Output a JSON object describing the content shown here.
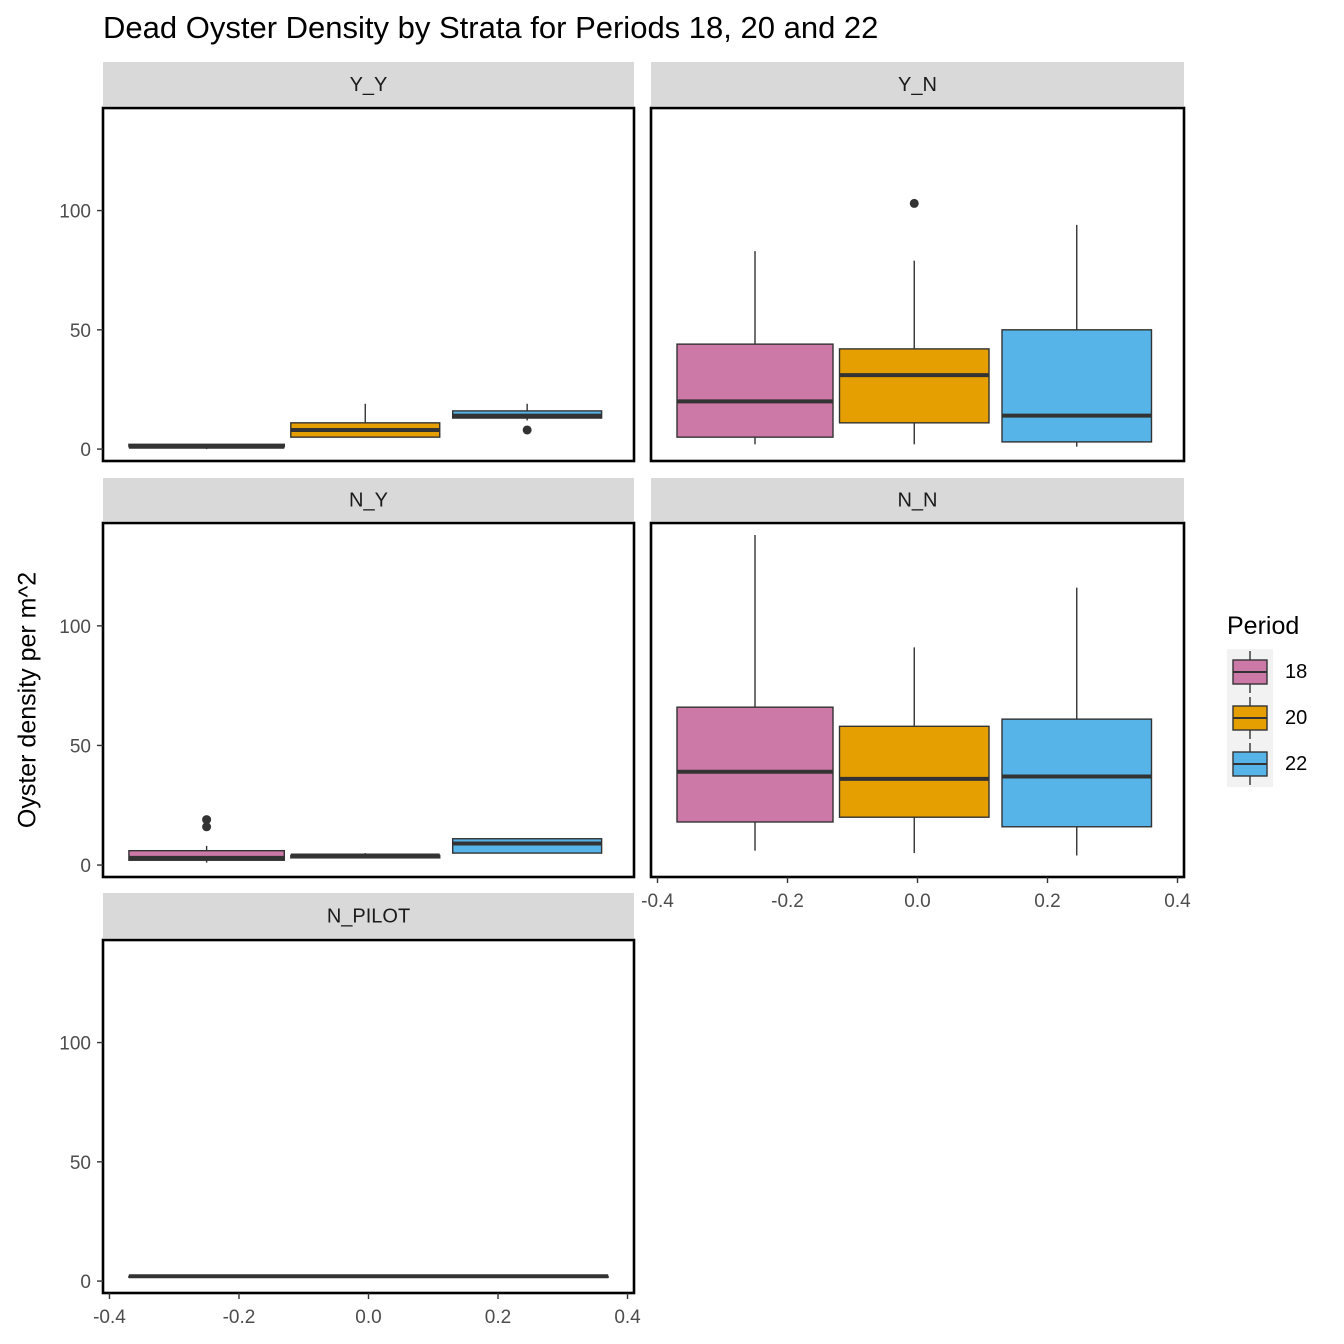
{
  "title": "Dead Oyster Density by Strata for Periods 18, 20 and 22",
  "colors": {
    "18": "#cc79a7",
    "20": "#e69f00",
    "22": "#56b4e9",
    "strip": "#d9d9d9",
    "line": "#333333"
  },
  "legend": {
    "title": "Period",
    "placement": "right",
    "entries": [
      "18",
      "20",
      "22"
    ]
  },
  "chart_data": {
    "type": "box",
    "ylabel": "Oyster density per m^2",
    "xlabel": "",
    "ylim": [
      -5,
      143
    ],
    "xlim": [
      -0.41,
      0.41
    ],
    "y_ticks": [
      0,
      50,
      100
    ],
    "x_ticks": [
      "-0.4",
      "-0.2",
      "0.0",
      "0.2",
      "0.4"
    ],
    "facet_by": "strata",
    "grid": false,
    "panels": [
      {
        "strip": "Y_Y",
        "boxes": [
          {
            "period": "18",
            "xmin": -0.37,
            "xmax": -0.13,
            "lower": 0,
            "q1": 1,
            "median": 1,
            "q3": 2,
            "upper": 2,
            "outliers": []
          },
          {
            "period": "20",
            "xmin": -0.12,
            "xmax": 0.11,
            "lower": 5,
            "q1": 5,
            "median": 8,
            "q3": 11,
            "upper": 19,
            "outliers": []
          },
          {
            "period": "22",
            "xmin": 0.13,
            "xmax": 0.36,
            "lower": 12,
            "q1": 13,
            "median": 14,
            "q3": 16,
            "upper": 19,
            "outliers": [
              8
            ]
          }
        ]
      },
      {
        "strip": "Y_N",
        "boxes": [
          {
            "period": "18",
            "xmin": -0.37,
            "xmax": -0.13,
            "lower": 2,
            "q1": 5,
            "median": 20,
            "q3": 44,
            "upper": 83,
            "outliers": []
          },
          {
            "period": "20",
            "xmin": -0.12,
            "xmax": 0.11,
            "lower": 2,
            "q1": 11,
            "median": 31,
            "q3": 42,
            "upper": 79,
            "outliers": [
              103
            ]
          },
          {
            "period": "22",
            "xmin": 0.13,
            "xmax": 0.36,
            "lower": 1,
            "q1": 3,
            "median": 14,
            "q3": 50,
            "upper": 94,
            "outliers": []
          }
        ]
      },
      {
        "strip": "N_Y",
        "boxes": [
          {
            "period": "18",
            "xmin": -0.37,
            "xmax": -0.13,
            "lower": 1,
            "q1": 2,
            "median": 3,
            "q3": 6,
            "upper": 8,
            "outliers": [
              16,
              19
            ]
          },
          {
            "period": "20",
            "xmin": -0.12,
            "xmax": 0.11,
            "lower": 3,
            "q1": 3,
            "median": 4,
            "q3": 4,
            "upper": 5,
            "outliers": []
          },
          {
            "period": "22",
            "xmin": 0.13,
            "xmax": 0.36,
            "lower": 5,
            "q1": 5,
            "median": 9,
            "q3": 11,
            "upper": 11,
            "outliers": []
          }
        ]
      },
      {
        "strip": "N_N",
        "boxes": [
          {
            "period": "18",
            "xmin": -0.37,
            "xmax": -0.13,
            "lower": 6,
            "q1": 18,
            "median": 39,
            "q3": 66,
            "upper": 138,
            "outliers": []
          },
          {
            "period": "20",
            "xmin": -0.12,
            "xmax": 0.11,
            "lower": 5,
            "q1": 20,
            "median": 36,
            "q3": 58,
            "upper": 91,
            "outliers": []
          },
          {
            "period": "22",
            "xmin": 0.13,
            "xmax": 0.36,
            "lower": 4,
            "q1": 16,
            "median": 37,
            "q3": 61,
            "upper": 116,
            "outliers": []
          }
        ]
      },
      {
        "strip": "N_PILOT",
        "boxes": [
          {
            "period": "18",
            "xmin": -0.37,
            "xmax": 0.37,
            "lower": 2,
            "q1": 2,
            "median": 2,
            "q3": 2,
            "upper": 2,
            "outliers": []
          }
        ]
      }
    ]
  }
}
